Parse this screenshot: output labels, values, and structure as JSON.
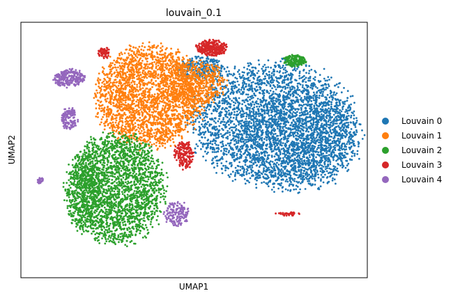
{
  "chart_data": {
    "type": "scatter",
    "title": "louvain_0.1",
    "xlabel": "UMAP1",
    "ylabel": "UMAP2",
    "xlim": [
      0,
      100
    ],
    "ylim": [
      0,
      100
    ],
    "grid": false,
    "ticks": "none",
    "legend_position": "right, outside plot",
    "series": [
      {
        "name": "Louvain 0",
        "color": "#1f77b4",
        "clusters": [
          {
            "cx": 73,
            "cy": 60,
            "rx": 26,
            "ry": 27,
            "n": 2600
          },
          {
            "cx": 80,
            "cy": 54,
            "rx": 20,
            "ry": 22,
            "n": 1400
          },
          {
            "cx": 52,
            "cy": 82,
            "rx": 8,
            "ry": 5,
            "n": 250
          }
        ]
      },
      {
        "name": "Louvain 1",
        "color": "#ff7f0e",
        "clusters": [
          {
            "cx": 37,
            "cy": 71,
            "rx": 17,
            "ry": 22,
            "n": 2400
          },
          {
            "cx": 50,
            "cy": 76,
            "rx": 10,
            "ry": 10,
            "n": 500
          }
        ]
      },
      {
        "name": "Louvain 2",
        "color": "#2ca02c",
        "clusters": [
          {
            "cx": 28,
            "cy": 35,
            "rx": 15,
            "ry": 24,
            "n": 2200
          },
          {
            "cx": 18,
            "cy": 33,
            "rx": 6,
            "ry": 17,
            "n": 500
          },
          {
            "cx": 79,
            "cy": 85,
            "rx": 3.5,
            "ry": 2.5,
            "n": 180
          }
        ]
      },
      {
        "name": "Louvain 3",
        "color": "#d62728",
        "clusters": [
          {
            "cx": 55,
            "cy": 90,
            "rx": 5,
            "ry": 3.5,
            "n": 280
          },
          {
            "cx": 47,
            "cy": 48,
            "rx": 3,
            "ry": 6,
            "n": 180
          },
          {
            "cx": 24,
            "cy": 88,
            "rx": 2,
            "ry": 2.5,
            "n": 70
          },
          {
            "cx": 77,
            "cy": 25,
            "rx": 4,
            "ry": 0.8,
            "n": 40
          }
        ]
      },
      {
        "name": "Louvain 4",
        "color": "#9467bd",
        "clusters": [
          {
            "cx": 14,
            "cy": 78,
            "rx": 5,
            "ry": 4,
            "n": 250
          },
          {
            "cx": 14,
            "cy": 62,
            "rx": 2.5,
            "ry": 5,
            "n": 130
          },
          {
            "cx": 45,
            "cy": 25,
            "rx": 4,
            "ry": 5.5,
            "n": 160
          },
          {
            "cx": 5.5,
            "cy": 38,
            "rx": 1,
            "ry": 1.5,
            "n": 25
          }
        ]
      }
    ]
  }
}
